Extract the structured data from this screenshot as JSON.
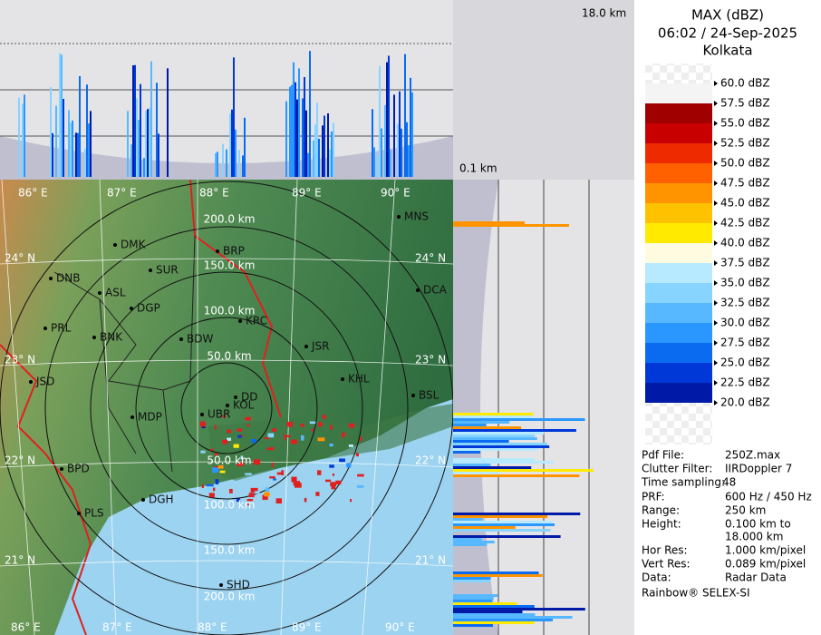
{
  "height_labels": {
    "top": "18.0 km",
    "bottom": "0.1 km"
  },
  "header": {
    "title": "MAX (dBZ)",
    "datetime": "06:02 / 24-Sep-2025",
    "station": "Kolkata"
  },
  "legend": {
    "labels": [
      "60.0 dBZ",
      "57.5 dBZ",
      "55.0 dBZ",
      "52.5 dBZ",
      "50.0 dBZ",
      "47.5 dBZ",
      "45.0 dBZ",
      "42.5 dBZ",
      "40.0 dBZ",
      "37.5 dBZ",
      "35.0 dBZ",
      "32.5 dBZ",
      "30.0 dBZ",
      "27.5 dBZ",
      "25.0 dBZ",
      "22.5 dBZ",
      "20.0 dBZ"
    ],
    "colors": [
      "#f4f4f4",
      "#a00000",
      "#c80000",
      "#ee2a00",
      "#ff6000",
      "#ff9400",
      "#ffc200",
      "#ffea00",
      "#fffbe0",
      "#b8eaff",
      "#86d4ff",
      "#58b8ff",
      "#2a96ff",
      "#0a6af0",
      "#0038d8",
      "#001aa8"
    ]
  },
  "map": {
    "longitudes": [
      "86° E",
      "87° E",
      "88° E",
      "89° E",
      "90° E"
    ],
    "latitudes": [
      "24° N",
      "23° N",
      "22° N",
      "21° N"
    ],
    "ranges": [
      "50.0 km",
      "100.0 km",
      "150.0 km",
      "200.0 km"
    ],
    "stations": [
      "MNS",
      "DMK",
      "BRP",
      "DNB",
      "SUR",
      "ASL",
      "DGP",
      "DCA",
      "KRC",
      "PRL",
      "BNK",
      "BDW",
      "JSR",
      "JSD",
      "KHL",
      "KOL",
      "DD",
      "BSL",
      "UBR",
      "MDP",
      "BPD",
      "DGH",
      "PLS",
      "SHD"
    ]
  },
  "info": {
    "rows": [
      [
        "Pdf File:",
        "250Z.max"
      ],
      [
        "Clutter Filter:",
        "IIRDoppler 7"
      ],
      [
        "Time sampling:",
        "48"
      ],
      [
        "PRF:",
        "600 Hz / 450 Hz"
      ],
      [
        "Range:",
        "250 km"
      ],
      [
        "Height:",
        "0.100 km to"
      ],
      [
        "18.000 km"
      ],
      [
        "Hor Res:",
        "1.000 km/pixel"
      ],
      [
        "Vert Res:",
        "0.089 km/pixel"
      ],
      [
        "Data:",
        "Radar Data"
      ]
    ],
    "footer": "Rainbow® SELEX-SI"
  }
}
